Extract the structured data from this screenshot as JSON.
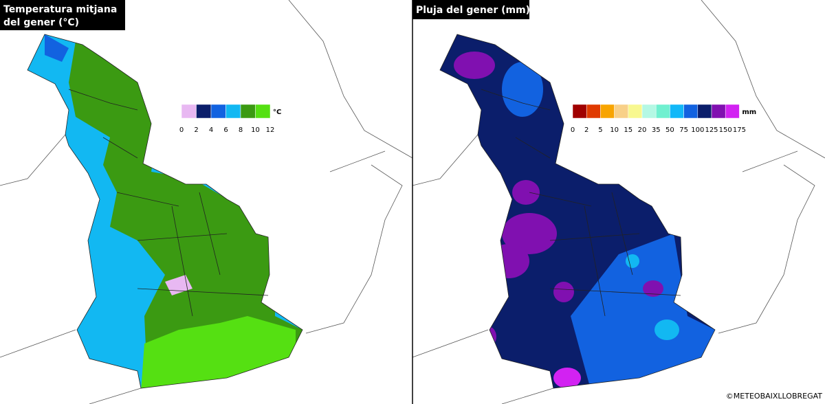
{
  "panels": [
    {
      "title": [
        "Temperatura mitjana",
        "del gener (°C)"
      ],
      "legend": {
        "colors": [
          "#e8b8f2",
          "#0b1e6b",
          "#1262e0",
          "#12b8f2",
          "#3b9a12",
          "#55e012"
        ],
        "labels": [
          "0",
          "2",
          "4",
          "6",
          "8",
          "10",
          "12"
        ],
        "unit": "°C"
      }
    },
    {
      "title": [
        "Pluja del gener (mm)"
      ],
      "legend": {
        "colors": [
          "#a00000",
          "#e03a00",
          "#f8a400",
          "#f8d088",
          "#f8f890",
          "#b4f8e4",
          "#70f0d0",
          "#12b8f8",
          "#1262e0",
          "#0b1e6b",
          "#8010b0",
          "#d222f2"
        ],
        "labels": [
          "0",
          "2",
          "5",
          "10",
          "15",
          "20",
          "35",
          "50",
          "75",
          "100",
          "125",
          "150",
          "175"
        ],
        "unit": "mm"
      }
    }
  ],
  "credit": "©METEOBAIXLLOBREGAT"
}
